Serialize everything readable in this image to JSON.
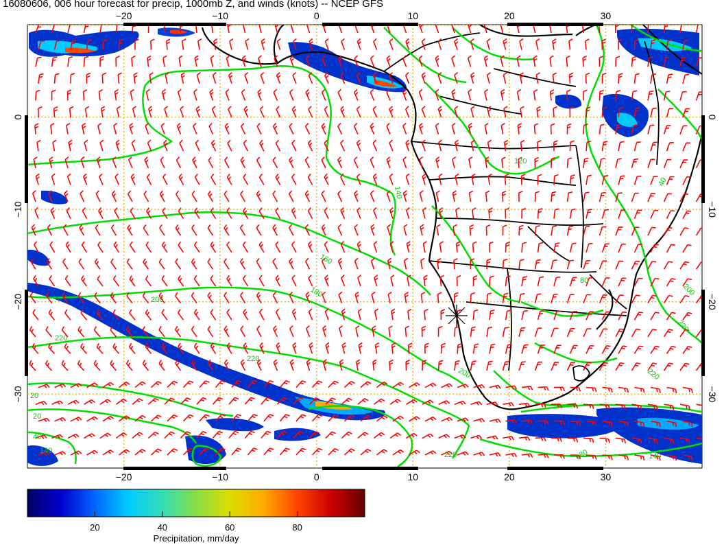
{
  "title": "16080606, 006 hour forecast for precip, 1000mb Z, and winds (knots) -- NCEP GFS",
  "map": {
    "lon_range": [
      -30,
      40
    ],
    "lat_range": [
      -38,
      10
    ],
    "lon_ticks": [
      "-20",
      "-10",
      "0",
      "10",
      "20",
      "30"
    ],
    "lat_ticks": [
      "0",
      "-10",
      "-20",
      "-30"
    ],
    "grid_color": "#e8b820",
    "coast_color": "#000000",
    "contour_color": "#00dd00",
    "barb_color": "#ff0000",
    "contour_labels": [
      "120",
      "140",
      "160",
      "180",
      "200",
      "220",
      "20",
      "40",
      "80"
    ],
    "marker": "station cross near Walvis Bay"
  },
  "colorbar": {
    "ticks": [
      "20",
      "40",
      "60",
      "80"
    ],
    "label": "Precipitation, mm/day",
    "range": [
      0,
      100
    ],
    "colors": [
      "#000066",
      "#0000cc",
      "#0066ff",
      "#00ccff",
      "#33ddbb",
      "#88dd44",
      "#dddd00",
      "#ffaa00",
      "#ff4400",
      "#cc0000",
      "#660000"
    ]
  }
}
